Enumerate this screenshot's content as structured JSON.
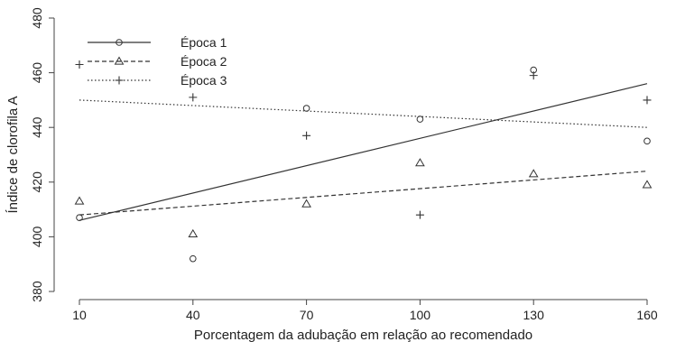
{
  "chart_data": {
    "type": "scatter",
    "xlabel": "Porcentagem da adubação em relação ao recomendado",
    "ylabel": "Índice de clorofila A",
    "xlim": [
      10,
      160
    ],
    "ylim": [
      380,
      480
    ],
    "xticks": [
      10,
      40,
      70,
      100,
      130,
      160
    ],
    "yticks": [
      380,
      400,
      420,
      440,
      460,
      480
    ],
    "legend_position": "top-left",
    "series": [
      {
        "name": "Época 1",
        "marker": "circle",
        "line_style": "solid",
        "color": "#333333",
        "points": [
          [
            10,
            407
          ],
          [
            40,
            392
          ],
          [
            70,
            447
          ],
          [
            100,
            443
          ],
          [
            130,
            461
          ],
          [
            160,
            435
          ]
        ],
        "fit": {
          "x": [
            10,
            160
          ],
          "y": [
            406,
            456
          ]
        }
      },
      {
        "name": "Época 2",
        "marker": "triangle",
        "line_style": "dashed",
        "color": "#333333",
        "points": [
          [
            10,
            413
          ],
          [
            40,
            401
          ],
          [
            70,
            412
          ],
          [
            100,
            427
          ],
          [
            130,
            423
          ],
          [
            160,
            419
          ]
        ],
        "fit": {
          "x": [
            10,
            160
          ],
          "y": [
            408,
            424
          ]
        }
      },
      {
        "name": "Época 3",
        "marker": "plus",
        "line_style": "dotted",
        "color": "#333333",
        "points": [
          [
            10,
            463
          ],
          [
            40,
            451
          ],
          [
            70,
            437
          ],
          [
            100,
            408
          ],
          [
            130,
            459
          ],
          [
            160,
            450
          ]
        ],
        "fit": {
          "x": [
            10,
            160
          ],
          "y": [
            450,
            440
          ]
        }
      }
    ]
  }
}
